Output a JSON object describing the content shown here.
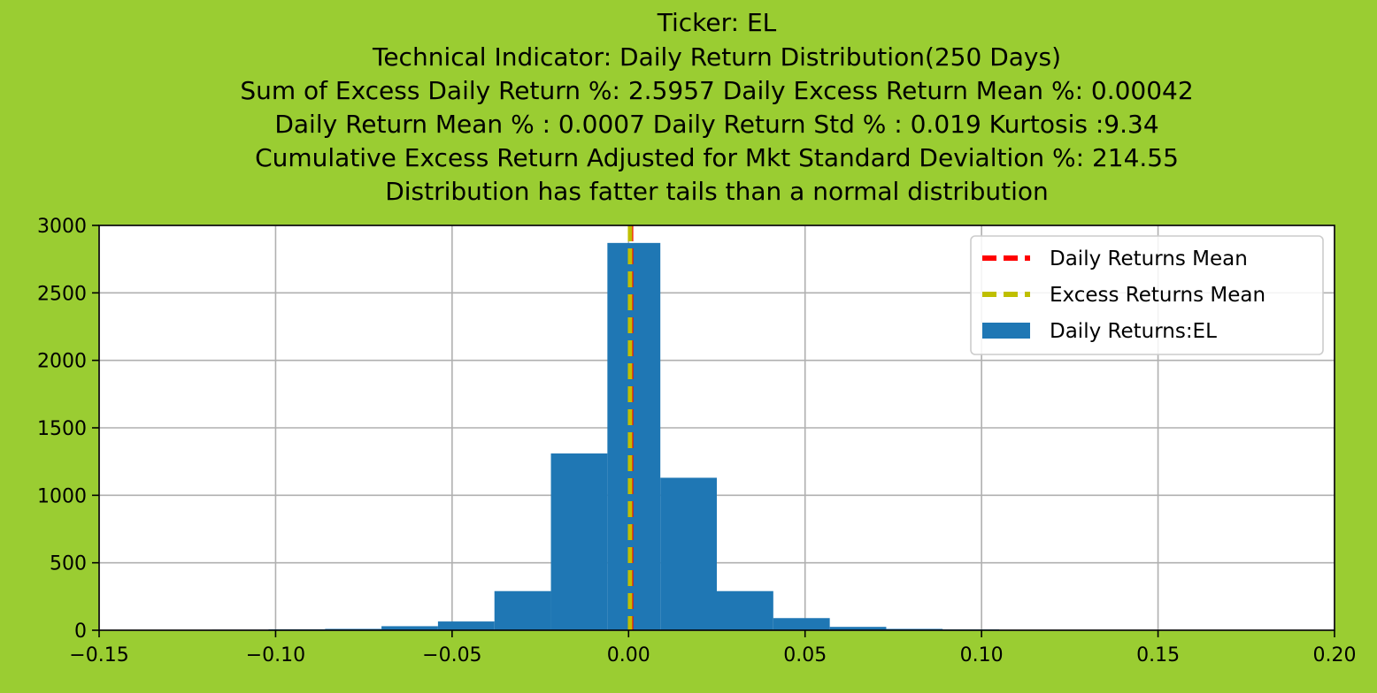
{
  "chart_data": {
    "type": "bar",
    "title_lines": [
      "Ticker: EL",
      "Technical Indicator: Daily Return Distribution(250 Days)",
      "Sum of Excess Daily Return %: 2.5957   Daily Excess Return Mean %: 0.00042",
      "Daily Return Mean % : 0.0007    Daily Return Std % : 0.019  Kurtosis :9.34",
      "Cumulative Excess Return Adjusted for Mkt Standard Devialtion %: 214.55",
      "Distribution has fatter tails than a normal distribution"
    ],
    "xlabel": "",
    "ylabel": "",
    "xlim": [
      -0.15,
      0.2
    ],
    "ylim": [
      0,
      3000
    ],
    "xticks": [
      -0.15,
      -0.1,
      -0.05,
      0.0,
      0.05,
      0.1,
      0.15,
      0.2
    ],
    "xtick_labels": [
      "−0.15",
      "−0.10",
      "−0.05",
      "0.00",
      "0.05",
      "0.10",
      "0.15",
      "0.20"
    ],
    "yticks": [
      0,
      500,
      1000,
      1500,
      2000,
      2500,
      3000
    ],
    "ytick_labels": [
      "0",
      "500",
      "1000",
      "1500",
      "2000",
      "2500",
      "3000"
    ],
    "grid": true,
    "legend_position": "top-right",
    "bins": [
      {
        "x0": -0.15,
        "x1": -0.134,
        "count": 1
      },
      {
        "x0": -0.134,
        "x1": -0.118,
        "count": 2
      },
      {
        "x0": -0.118,
        "x1": -0.102,
        "count": 4
      },
      {
        "x0": -0.102,
        "x1": -0.086,
        "count": 7
      },
      {
        "x0": -0.086,
        "x1": -0.07,
        "count": 10
      },
      {
        "x0": -0.07,
        "x1": -0.054,
        "count": 30
      },
      {
        "x0": -0.054,
        "x1": -0.038,
        "count": 65
      },
      {
        "x0": -0.038,
        "x1": -0.022,
        "count": 290
      },
      {
        "x0": -0.022,
        "x1": -0.006,
        "count": 1310
      },
      {
        "x0": -0.006,
        "x1": 0.009,
        "count": 2870
      },
      {
        "x0": 0.009,
        "x1": 0.025,
        "count": 1130
      },
      {
        "x0": 0.025,
        "x1": 0.041,
        "count": 290
      },
      {
        "x0": 0.041,
        "x1": 0.057,
        "count": 90
      },
      {
        "x0": 0.057,
        "x1": 0.073,
        "count": 25
      },
      {
        "x0": 0.073,
        "x1": 0.089,
        "count": 10
      },
      {
        "x0": 0.089,
        "x1": 0.105,
        "count": 6
      },
      {
        "x0": 0.105,
        "x1": 0.121,
        "count": 3
      },
      {
        "x0": 0.121,
        "x1": 0.137,
        "count": 2
      },
      {
        "x0": 0.137,
        "x1": 0.153,
        "count": 1
      },
      {
        "x0": 0.153,
        "x1": 0.169,
        "count": 1
      },
      {
        "x0": 0.169,
        "x1": 0.185,
        "count": 1
      }
    ],
    "series": [
      {
        "name": "Daily Returns Mean",
        "kind": "vline",
        "value": 0.0007,
        "color": "#ff0000",
        "style": "dashed"
      },
      {
        "name": "Excess Returns Mean",
        "kind": "vline",
        "value": 0.00042,
        "color": "#bfbf00",
        "style": "dashed"
      },
      {
        "name": "Daily Returns:EL",
        "kind": "histogram",
        "color": "#1f77b4"
      }
    ],
    "colors": {
      "background": "#9acd32",
      "plot_background": "#ffffff",
      "grid": "#b0b0b0"
    }
  }
}
